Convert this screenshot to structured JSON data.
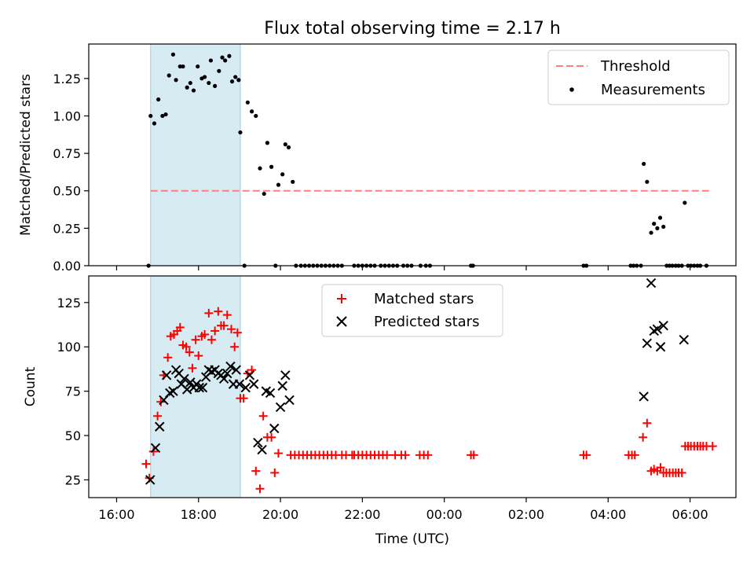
{
  "chart_data": [
    {
      "type": "scatter",
      "panel": "top",
      "title": "Flux total observing time = 2.17 h",
      "xlabel": "",
      "ylabel": "Matched/Predicted stars",
      "xticks": [
        "16:00",
        "18:00",
        "20:00",
        "22:00",
        "00:00",
        "02:00",
        "04:00",
        "06:00"
      ],
      "x_unit": "hours since 16:00 UTC",
      "xlim": [
        -0.68,
        15.12
      ],
      "ylim": [
        0,
        1.48
      ],
      "yticks": [
        "0.00",
        "0.25",
        "0.50",
        "0.75",
        "1.00",
        "1.25"
      ],
      "ytick_values": [
        0,
        0.25,
        0.5,
        0.75,
        1.0,
        1.25
      ],
      "shaded_interval": [
        0.83,
        3.02
      ],
      "threshold": {
        "name": "Threshold",
        "y": 0.5,
        "x_range": [
          0.83,
          14.5
        ],
        "color": "#ff7f7f"
      },
      "legend": [
        {
          "label": "Threshold"
        },
        {
          "label": "Measurements"
        }
      ],
      "legend_position": "upper right",
      "series": [
        {
          "name": "Measurements",
          "color": "#000000",
          "points": [
            [
              0.78,
              0
            ],
            [
              0.83,
              1.0
            ],
            [
              0.92,
              0.95
            ],
            [
              1.02,
              1.11
            ],
            [
              1.12,
              1.0
            ],
            [
              1.2,
              1.01
            ],
            [
              1.28,
              1.27
            ],
            [
              1.38,
              1.41
            ],
            [
              1.45,
              1.24
            ],
            [
              1.55,
              1.33
            ],
            [
              1.62,
              1.33
            ],
            [
              1.72,
              1.19
            ],
            [
              1.8,
              1.22
            ],
            [
              1.88,
              1.17
            ],
            [
              1.98,
              1.33
            ],
            [
              2.08,
              1.25
            ],
            [
              2.15,
              1.26
            ],
            [
              2.25,
              1.22
            ],
            [
              2.3,
              1.37
            ],
            [
              2.4,
              1.2
            ],
            [
              2.5,
              1.3
            ],
            [
              2.58,
              1.39
            ],
            [
              2.65,
              1.37
            ],
            [
              2.75,
              1.4
            ],
            [
              2.82,
              1.23
            ],
            [
              2.9,
              1.26
            ],
            [
              2.98,
              1.24
            ],
            [
              3.02,
              0.89
            ],
            [
              3.12,
              0
            ],
            [
              3.2,
              1.09
            ],
            [
              3.3,
              1.03
            ],
            [
              3.4,
              1.0
            ],
            [
              3.5,
              0.65
            ],
            [
              3.6,
              0.48
            ],
            [
              3.68,
              0.82
            ],
            [
              3.78,
              0.66
            ],
            [
              3.88,
              0
            ],
            [
              3.95,
              0.54
            ],
            [
              4.05,
              0.61
            ],
            [
              4.12,
              0.81
            ],
            [
              4.2,
              0.79
            ],
            [
              4.3,
              0.56
            ],
            [
              4.38,
              0
            ],
            [
              4.5,
              0
            ],
            [
              4.6,
              0
            ],
            [
              4.7,
              0
            ],
            [
              4.8,
              0
            ],
            [
              4.9,
              0
            ],
            [
              5.0,
              0
            ],
            [
              5.1,
              0
            ],
            [
              5.2,
              0
            ],
            [
              5.3,
              0
            ],
            [
              5.4,
              0
            ],
            [
              5.5,
              0
            ],
            [
              5.8,
              0
            ],
            [
              5.9,
              0
            ],
            [
              6.0,
              0
            ],
            [
              6.1,
              0
            ],
            [
              6.2,
              0
            ],
            [
              6.3,
              0
            ],
            [
              6.45,
              0
            ],
            [
              6.55,
              0
            ],
            [
              6.65,
              0
            ],
            [
              6.75,
              0
            ],
            [
              6.85,
              0
            ],
            [
              7.0,
              0
            ],
            [
              7.1,
              0
            ],
            [
              7.2,
              0
            ],
            [
              7.42,
              0
            ],
            [
              7.55,
              0
            ],
            [
              7.65,
              0
            ],
            [
              8.65,
              0
            ],
            [
              8.7,
              0
            ],
            [
              11.4,
              0
            ],
            [
              11.47,
              0
            ],
            [
              12.55,
              0
            ],
            [
              12.62,
              0
            ],
            [
              12.7,
              0
            ],
            [
              12.8,
              0
            ],
            [
              12.87,
              0.68
            ],
            [
              12.95,
              0.56
            ],
            [
              13.05,
              0.22
            ],
            [
              13.12,
              0.28
            ],
            [
              13.2,
              0.25
            ],
            [
              13.27,
              0.32
            ],
            [
              13.35,
              0.26
            ],
            [
              13.43,
              0
            ],
            [
              13.5,
              0
            ],
            [
              13.57,
              0
            ],
            [
              13.65,
              0
            ],
            [
              13.72,
              0
            ],
            [
              13.8,
              0
            ],
            [
              13.87,
              0.42
            ],
            [
              13.95,
              0
            ],
            [
              14.02,
              0
            ],
            [
              14.1,
              0
            ],
            [
              14.18,
              0
            ],
            [
              14.25,
              0
            ],
            [
              14.4,
              0
            ]
          ]
        }
      ]
    },
    {
      "type": "scatter",
      "panel": "bottom",
      "title": "",
      "xlabel": "Time (UTC)",
      "ylabel": "Count",
      "xticks": [
        "16:00",
        "18:00",
        "20:00",
        "22:00",
        "00:00",
        "02:00",
        "04:00",
        "06:00"
      ],
      "x_unit": "hours since 16:00 UTC",
      "xlim": [
        -0.68,
        15.12
      ],
      "ylim": [
        15,
        140
      ],
      "yticks": [
        "25",
        "50",
        "75",
        "100",
        "125"
      ],
      "ytick_values": [
        25,
        50,
        75,
        100,
        125
      ],
      "shaded_interval": [
        0.83,
        3.02
      ],
      "legend": [
        {
          "label": "Matched stars"
        },
        {
          "label": "Predicted stars"
        }
      ],
      "legend_position": "upper center",
      "series": [
        {
          "name": "Matched stars",
          "marker": "+",
          "color": "#ff0000",
          "points": [
            [
              0.72,
              34
            ],
            [
              0.8,
              26
            ],
            [
              0.9,
              41
            ],
            [
              1.0,
              61
            ],
            [
              1.08,
              69
            ],
            [
              1.15,
              84
            ],
            [
              1.25,
              94
            ],
            [
              1.32,
              106
            ],
            [
              1.4,
              107
            ],
            [
              1.48,
              109
            ],
            [
              1.55,
              111
            ],
            [
              1.62,
              101
            ],
            [
              1.7,
              100
            ],
            [
              1.78,
              97
            ],
            [
              1.85,
              88
            ],
            [
              1.93,
              104
            ],
            [
              2.0,
              95
            ],
            [
              2.08,
              106
            ],
            [
              2.15,
              107
            ],
            [
              2.25,
              119
            ],
            [
              2.32,
              104
            ],
            [
              2.4,
              109
            ],
            [
              2.48,
              120
            ],
            [
              2.55,
              112
            ],
            [
              2.62,
              112
            ],
            [
              2.7,
              118
            ],
            [
              2.8,
              110
            ],
            [
              2.88,
              100
            ],
            [
              2.95,
              108
            ],
            [
              3.02,
              71
            ],
            [
              3.1,
              71
            ],
            [
              3.2,
              85
            ],
            [
              3.3,
              87
            ],
            [
              3.4,
              30
            ],
            [
              3.5,
              20
            ],
            [
              3.58,
              61
            ],
            [
              3.68,
              49
            ],
            [
              3.78,
              49
            ],
            [
              3.86,
              29
            ],
            [
              3.95,
              40
            ],
            [
              4.25,
              39
            ],
            [
              4.35,
              39
            ],
            [
              4.45,
              39
            ],
            [
              4.55,
              39
            ],
            [
              4.65,
              39
            ],
            [
              4.75,
              39
            ],
            [
              4.85,
              39
            ],
            [
              4.95,
              39
            ],
            [
              5.05,
              39
            ],
            [
              5.15,
              39
            ],
            [
              5.25,
              39
            ],
            [
              5.35,
              39
            ],
            [
              5.5,
              39
            ],
            [
              5.6,
              39
            ],
            [
              5.75,
              39
            ],
            [
              5.8,
              39
            ],
            [
              5.9,
              39
            ],
            [
              6.0,
              39
            ],
            [
              6.1,
              39
            ],
            [
              6.2,
              39
            ],
            [
              6.3,
              39
            ],
            [
              6.4,
              39
            ],
            [
              6.5,
              39
            ],
            [
              6.6,
              39
            ],
            [
              6.8,
              39
            ],
            [
              6.95,
              39
            ],
            [
              7.05,
              39
            ],
            [
              7.4,
              39
            ],
            [
              7.5,
              39
            ],
            [
              7.6,
              39
            ],
            [
              8.65,
              39
            ],
            [
              8.72,
              39
            ],
            [
              11.4,
              39
            ],
            [
              11.47,
              39
            ],
            [
              12.5,
              39
            ],
            [
              12.58,
              39
            ],
            [
              12.65,
              39
            ],
            [
              12.85,
              49
            ],
            [
              12.95,
              57
            ],
            [
              13.05,
              30
            ],
            [
              13.12,
              31
            ],
            [
              13.2,
              30
            ],
            [
              13.28,
              32
            ],
            [
              13.35,
              29
            ],
            [
              13.42,
              29
            ],
            [
              13.5,
              29
            ],
            [
              13.58,
              29
            ],
            [
              13.65,
              29
            ],
            [
              13.72,
              29
            ],
            [
              13.8,
              29
            ],
            [
              13.88,
              44
            ],
            [
              13.95,
              44
            ],
            [
              14.02,
              44
            ],
            [
              14.1,
              44
            ],
            [
              14.18,
              44
            ],
            [
              14.25,
              44
            ],
            [
              14.32,
              44
            ],
            [
              14.4,
              44
            ],
            [
              14.55,
              44
            ]
          ]
        },
        {
          "name": "Predicted stars",
          "marker": "x",
          "color": "#000000",
          "points": [
            [
              0.82,
              25
            ],
            [
              0.95,
              43
            ],
            [
              1.05,
              55
            ],
            [
              1.15,
              70
            ],
            [
              1.22,
              84
            ],
            [
              1.3,
              74
            ],
            [
              1.38,
              75
            ],
            [
              1.45,
              87
            ],
            [
              1.52,
              85
            ],
            [
              1.58,
              79
            ],
            [
              1.65,
              82
            ],
            [
              1.72,
              76
            ],
            [
              1.8,
              80
            ],
            [
              1.88,
              77
            ],
            [
              1.95,
              79
            ],
            [
              2.02,
              77
            ],
            [
              2.1,
              77
            ],
            [
              2.18,
              83
            ],
            [
              2.25,
              87
            ],
            [
              2.32,
              86
            ],
            [
              2.4,
              87
            ],
            [
              2.48,
              85
            ],
            [
              2.55,
              84
            ],
            [
              2.62,
              82
            ],
            [
              2.7,
              85
            ],
            [
              2.78,
              89
            ],
            [
              2.85,
              79
            ],
            [
              2.92,
              87
            ],
            [
              3.0,
              79
            ],
            [
              3.15,
              77
            ],
            [
              3.25,
              84
            ],
            [
              3.35,
              79
            ],
            [
              3.45,
              46
            ],
            [
              3.55,
              42
            ],
            [
              3.65,
              75
            ],
            [
              3.75,
              74
            ],
            [
              3.85,
              54
            ],
            [
              4.0,
              66
            ],
            [
              4.05,
              78
            ],
            [
              4.12,
              84
            ],
            [
              4.22,
              70
            ],
            [
              12.87,
              72
            ],
            [
              12.95,
              102
            ],
            [
              13.05,
              136
            ],
            [
              13.12,
              109
            ],
            [
              13.2,
              110
            ],
            [
              13.28,
              100
            ],
            [
              13.35,
              112
            ],
            [
              13.85,
              104
            ]
          ]
        }
      ]
    }
  ]
}
